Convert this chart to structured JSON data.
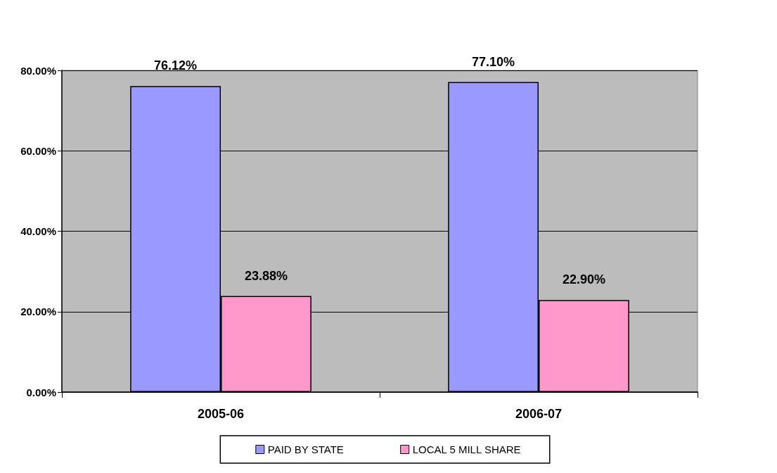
{
  "chart_data": {
    "type": "bar",
    "categories": [
      "2005-06",
      "2006-07"
    ],
    "series": [
      {
        "name": "PAID BY STATE",
        "color": "#9999ff",
        "values": [
          76.12,
          77.1
        ],
        "value_labels": [
          "76.12%",
          "77.10%"
        ]
      },
      {
        "name": "LOCAL 5 MILL SHARE",
        "color": "#ff99cc",
        "values": [
          23.88,
          22.9
        ],
        "value_labels": [
          "23.88%",
          "22.90%"
        ]
      }
    ],
    "ylim": [
      0,
      80
    ],
    "yticks": [
      {
        "value": 0,
        "label": "0.00%"
      },
      {
        "value": 20,
        "label": "20.00%"
      },
      {
        "value": 40,
        "label": "40.00%"
      },
      {
        "value": 60,
        "label": "60.00%"
      },
      {
        "value": 80,
        "label": "80.00%"
      }
    ],
    "grid": "y",
    "legend": "bottom"
  }
}
